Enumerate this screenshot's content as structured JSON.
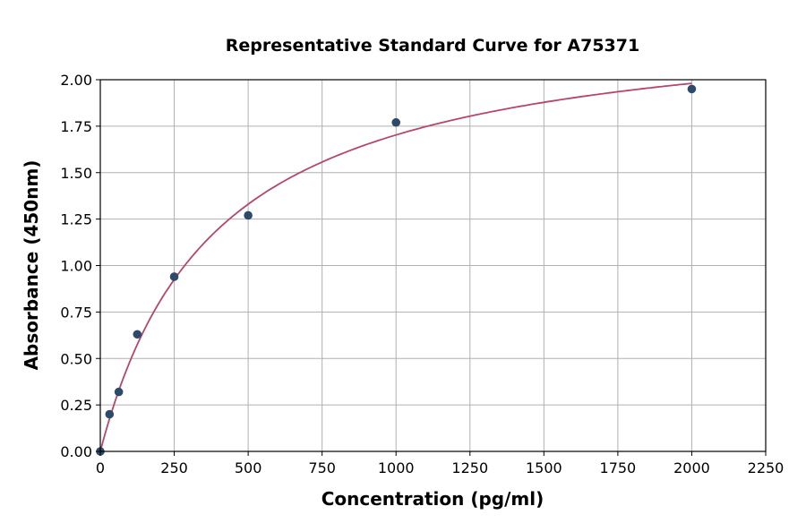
{
  "chart_data": {
    "type": "scatter",
    "title": "Representative Standard Curve for A75371",
    "xlabel": "Concentration (pg/ml)",
    "ylabel": "Absorbance (450nm)",
    "xlim": [
      0,
      2250
    ],
    "ylim": [
      0,
      2.0
    ],
    "xticks": [
      0,
      250,
      500,
      750,
      1000,
      1250,
      1500,
      1750,
      2000,
      2250
    ],
    "yticks": [
      "0.00",
      "0.25",
      "0.50",
      "0.75",
      "1.00",
      "1.25",
      "1.50",
      "1.75",
      "2.00"
    ],
    "grid": true,
    "points": {
      "x": [
        0,
        31.25,
        62.5,
        125,
        250,
        500,
        1000,
        2000
      ],
      "y": [
        0.0,
        0.2,
        0.32,
        0.63,
        0.94,
        1.27,
        1.77,
        1.95
      ]
    },
    "fit_curve": {
      "type": "saturation",
      "vmax": 2.366,
      "k": 389.5,
      "x_range": [
        0,
        2000
      ]
    },
    "colors": {
      "points": "#2e4a6b",
      "curve": "#b5476b",
      "grid": "#b0b0b0"
    }
  }
}
